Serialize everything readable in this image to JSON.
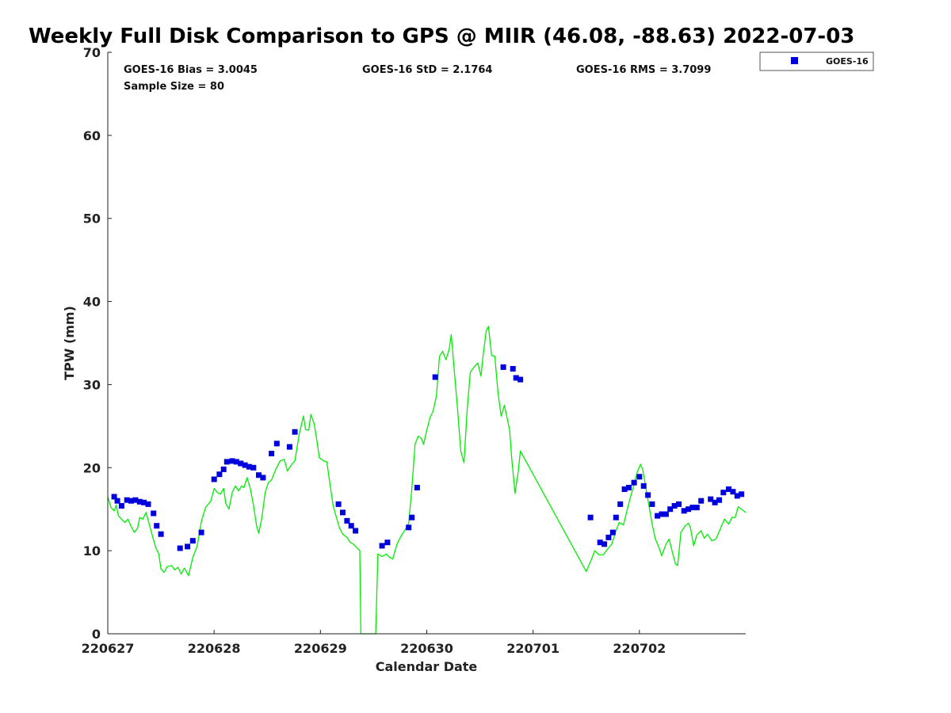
{
  "chart_data": {
    "type": "scatter",
    "title": "Weekly Full Disk Comparison to GPS @ MIIR (46.08, -88.63) 2022-07-03",
    "xlabel": "Calendar Date",
    "ylabel": "TPW (mm)",
    "xlim": [
      0,
      6
    ],
    "ylim": [
      0,
      70
    ],
    "x_ticks": [
      0,
      1,
      2,
      3,
      4,
      5
    ],
    "x_tick_labels": [
      "220627",
      "220628",
      "220629",
      "220630",
      "220701",
      "220702"
    ],
    "y_ticks": [
      0,
      10,
      20,
      30,
      40,
      50,
      60,
      70
    ],
    "y_tick_labels": [
      "0",
      "10",
      "20",
      "30",
      "40",
      "50",
      "60",
      "70"
    ],
    "x_unit": "days since 220627 00Z",
    "grid": false,
    "legend_position": "top-right outside",
    "stats": {
      "bias": "GOES-16 Bias = 3.0045",
      "std": "GOES-16 StD = 2.1764",
      "rms": "GOES-16 RMS = 3.7099",
      "sample": "Sample Size = 80"
    },
    "series": [
      {
        "name": "GOES-16",
        "kind": "points",
        "color": "#0000dd",
        "marker": "square",
        "points": [
          [
            0.06,
            16.5
          ],
          [
            0.09,
            16.0
          ],
          [
            0.13,
            15.4
          ],
          [
            0.18,
            16.1
          ],
          [
            0.22,
            16.0
          ],
          [
            0.26,
            16.1
          ],
          [
            0.3,
            15.9
          ],
          [
            0.34,
            15.8
          ],
          [
            0.38,
            15.6
          ],
          [
            0.43,
            14.5
          ],
          [
            0.46,
            13.0
          ],
          [
            0.5,
            12.0
          ],
          [
            0.68,
            10.3
          ],
          [
            0.75,
            10.5
          ],
          [
            0.8,
            11.2
          ],
          [
            0.88,
            12.2
          ],
          [
            1.0,
            18.6
          ],
          [
            1.05,
            19.2
          ],
          [
            1.09,
            19.8
          ],
          [
            1.12,
            20.7
          ],
          [
            1.17,
            20.8
          ],
          [
            1.21,
            20.7
          ],
          [
            1.25,
            20.5
          ],
          [
            1.29,
            20.3
          ],
          [
            1.33,
            20.1
          ],
          [
            1.37,
            20.0
          ],
          [
            1.42,
            19.1
          ],
          [
            1.46,
            18.8
          ],
          [
            1.54,
            21.7
          ],
          [
            1.59,
            22.9
          ],
          [
            1.71,
            22.5
          ],
          [
            1.76,
            24.3
          ],
          [
            2.17,
            15.6
          ],
          [
            2.21,
            14.6
          ],
          [
            2.25,
            13.6
          ],
          [
            2.29,
            13.0
          ],
          [
            2.33,
            12.4
          ],
          [
            2.58,
            10.6
          ],
          [
            2.63,
            11.0
          ],
          [
            2.83,
            12.8
          ],
          [
            2.86,
            14.0
          ],
          [
            2.91,
            17.6
          ],
          [
            3.08,
            30.9
          ],
          [
            3.72,
            32.1
          ],
          [
            3.81,
            31.9
          ],
          [
            3.84,
            30.8
          ],
          [
            3.88,
            30.6
          ],
          [
            4.54,
            14.0
          ],
          [
            4.63,
            11.0
          ],
          [
            4.67,
            10.8
          ],
          [
            4.71,
            11.6
          ],
          [
            4.75,
            12.2
          ],
          [
            4.78,
            14.0
          ],
          [
            4.82,
            15.6
          ],
          [
            4.86,
            17.4
          ],
          [
            4.9,
            17.6
          ],
          [
            4.95,
            18.2
          ],
          [
            5.0,
            18.9
          ],
          [
            5.04,
            17.8
          ],
          [
            5.08,
            16.7
          ],
          [
            5.12,
            15.6
          ],
          [
            5.17,
            14.2
          ],
          [
            5.21,
            14.4
          ],
          [
            5.25,
            14.4
          ],
          [
            5.29,
            15.0
          ],
          [
            5.33,
            15.4
          ],
          [
            5.37,
            15.6
          ],
          [
            5.42,
            14.8
          ],
          [
            5.46,
            15.0
          ],
          [
            5.5,
            15.2
          ],
          [
            5.54,
            15.2
          ],
          [
            5.58,
            16.0
          ],
          [
            5.67,
            16.2
          ],
          [
            5.71,
            15.8
          ],
          [
            5.75,
            16.1
          ],
          [
            5.79,
            17.0
          ],
          [
            5.84,
            17.4
          ],
          [
            5.88,
            17.1
          ],
          [
            5.92,
            16.6
          ],
          [
            5.96,
            16.8
          ]
        ]
      },
      {
        "name": "GPS",
        "kind": "line",
        "color": "#00ee00",
        "points": [
          [
            0.0,
            16.5
          ],
          [
            0.03,
            15.2
          ],
          [
            0.06,
            14.8
          ],
          [
            0.08,
            15.5
          ],
          [
            0.1,
            14.2
          ],
          [
            0.13,
            13.8
          ],
          [
            0.16,
            13.4
          ],
          [
            0.19,
            13.8
          ],
          [
            0.22,
            12.9
          ],
          [
            0.25,
            12.2
          ],
          [
            0.28,
            12.7
          ],
          [
            0.3,
            14.0
          ],
          [
            0.33,
            13.8
          ],
          [
            0.36,
            14.6
          ],
          [
            0.39,
            13.2
          ],
          [
            0.42,
            11.8
          ],
          [
            0.45,
            10.4
          ],
          [
            0.48,
            9.6
          ],
          [
            0.5,
            7.8
          ],
          [
            0.53,
            7.4
          ],
          [
            0.56,
            8.1
          ],
          [
            0.6,
            8.2
          ],
          [
            0.63,
            7.7
          ],
          [
            0.66,
            8.0
          ],
          [
            0.69,
            7.2
          ],
          [
            0.72,
            7.9
          ],
          [
            0.76,
            7.0
          ],
          [
            0.8,
            9.2
          ],
          [
            0.84,
            10.5
          ],
          [
            0.88,
            13.5
          ],
          [
            0.92,
            15.2
          ],
          [
            0.97,
            16.0
          ],
          [
            1.0,
            17.5
          ],
          [
            1.03,
            17.0
          ],
          [
            1.06,
            16.8
          ],
          [
            1.09,
            17.5
          ],
          [
            1.11,
            15.7
          ],
          [
            1.14,
            15.0
          ],
          [
            1.17,
            17.0
          ],
          [
            1.2,
            17.8
          ],
          [
            1.23,
            17.2
          ],
          [
            1.26,
            17.8
          ],
          [
            1.28,
            17.6
          ],
          [
            1.31,
            18.8
          ],
          [
            1.34,
            17.5
          ],
          [
            1.37,
            15.5
          ],
          [
            1.4,
            13.0
          ],
          [
            1.42,
            12.1
          ],
          [
            1.45,
            14.0
          ],
          [
            1.48,
            17.0
          ],
          [
            1.51,
            18.2
          ],
          [
            1.54,
            18.5
          ],
          [
            1.58,
            19.8
          ],
          [
            1.62,
            20.8
          ],
          [
            1.66,
            21.0
          ],
          [
            1.69,
            19.6
          ],
          [
            1.73,
            20.4
          ],
          [
            1.76,
            20.8
          ],
          [
            1.8,
            24.0
          ],
          [
            1.84,
            26.2
          ],
          [
            1.86,
            24.6
          ],
          [
            1.89,
            24.5
          ],
          [
            1.91,
            26.4
          ],
          [
            1.94,
            25.3
          ],
          [
            1.96,
            23.8
          ],
          [
            1.99,
            21.2
          ],
          [
            2.03,
            20.8
          ],
          [
            2.06,
            20.7
          ],
          [
            2.09,
            18.0
          ],
          [
            2.12,
            15.4
          ],
          [
            2.15,
            14.0
          ],
          [
            2.18,
            12.7
          ],
          [
            2.21,
            12.0
          ],
          [
            2.25,
            11.6
          ],
          [
            2.28,
            11.0
          ],
          [
            2.31,
            10.8
          ],
          [
            2.34,
            10.4
          ],
          [
            2.37,
            10.0
          ],
          [
            2.38,
            0.0
          ],
          [
            2.52,
            0.0
          ],
          [
            2.54,
            9.6
          ],
          [
            2.58,
            9.3
          ],
          [
            2.62,
            9.6
          ],
          [
            2.65,
            9.2
          ],
          [
            2.68,
            9.0
          ],
          [
            2.72,
            10.8
          ],
          [
            2.76,
            11.8
          ],
          [
            2.8,
            12.6
          ],
          [
            2.83,
            13.3
          ],
          [
            2.86,
            17.5
          ],
          [
            2.89,
            22.8
          ],
          [
            2.92,
            23.8
          ],
          [
            2.95,
            23.5
          ],
          [
            2.97,
            22.8
          ],
          [
            3.0,
            24.5
          ],
          [
            3.03,
            26.0
          ],
          [
            3.06,
            26.8
          ],
          [
            3.09,
            28.6
          ],
          [
            3.12,
            33.4
          ],
          [
            3.15,
            34.0
          ],
          [
            3.18,
            33.0
          ],
          [
            3.21,
            34.2
          ],
          [
            3.23,
            36.0
          ],
          [
            3.26,
            31.5
          ],
          [
            3.29,
            27.0
          ],
          [
            3.32,
            22.0
          ],
          [
            3.35,
            20.6
          ],
          [
            3.38,
            27.0
          ],
          [
            3.41,
            31.5
          ],
          [
            3.45,
            32.2
          ],
          [
            3.48,
            32.6
          ],
          [
            3.51,
            31.0
          ],
          [
            3.53,
            33.5
          ],
          [
            3.56,
            36.5
          ],
          [
            3.58,
            37.0
          ],
          [
            3.61,
            33.5
          ],
          [
            3.64,
            33.4
          ],
          [
            3.67,
            29.0
          ],
          [
            3.7,
            26.2
          ],
          [
            3.73,
            27.5
          ],
          [
            3.76,
            25.7
          ],
          [
            3.78,
            24.5
          ],
          [
            3.8,
            21.0
          ],
          [
            3.83,
            16.9
          ],
          [
            3.86,
            19.5
          ],
          [
            3.88,
            22.0
          ],
          [
            4.5,
            7.5
          ],
          [
            4.55,
            9.0
          ],
          [
            4.58,
            10.0
          ],
          [
            4.62,
            9.5
          ],
          [
            4.66,
            9.5
          ],
          [
            4.7,
            10.2
          ],
          [
            4.74,
            10.8
          ],
          [
            4.78,
            12.4
          ],
          [
            4.81,
            13.4
          ],
          [
            4.85,
            13.1
          ],
          [
            4.9,
            15.7
          ],
          [
            4.95,
            18.0
          ],
          [
            4.98,
            19.5
          ],
          [
            5.01,
            20.4
          ],
          [
            5.03,
            19.8
          ],
          [
            5.06,
            17.6
          ],
          [
            5.09,
            15.4
          ],
          [
            5.12,
            13.2
          ],
          [
            5.15,
            11.4
          ],
          [
            5.18,
            10.5
          ],
          [
            5.21,
            9.4
          ],
          [
            5.25,
            10.8
          ],
          [
            5.28,
            11.4
          ],
          [
            5.31,
            9.8
          ],
          [
            5.34,
            8.4
          ],
          [
            5.36,
            8.2
          ],
          [
            5.39,
            12.2
          ],
          [
            5.43,
            13.0
          ],
          [
            5.46,
            13.3
          ],
          [
            5.48,
            12.8
          ],
          [
            5.51,
            10.6
          ],
          [
            5.54,
            11.9
          ],
          [
            5.58,
            12.4
          ],
          [
            5.61,
            11.5
          ],
          [
            5.64,
            12.0
          ],
          [
            5.68,
            11.2
          ],
          [
            5.72,
            11.4
          ],
          [
            5.76,
            12.6
          ],
          [
            5.8,
            13.8
          ],
          [
            5.84,
            13.2
          ],
          [
            5.87,
            14.0
          ],
          [
            5.9,
            14.0
          ],
          [
            5.93,
            15.3
          ],
          [
            6.0,
            14.6
          ]
        ]
      }
    ]
  }
}
